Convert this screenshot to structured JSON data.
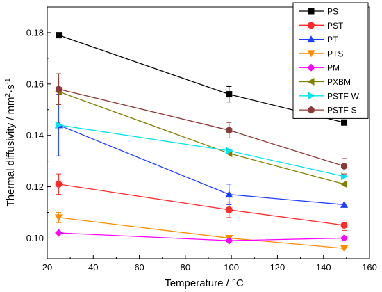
{
  "chart_data": {
    "type": "line",
    "xlabel": "Temperature / °C",
    "ylabel_main": "Thermal diffusivity / mm",
    "ylabel_sup1": "2",
    "ylabel_mid": "·s",
    "ylabel_sup2": "-1",
    "xlim": [
      20,
      160
    ],
    "ylim": [
      0.092,
      0.19
    ],
    "x_ticks": [
      20,
      40,
      60,
      80,
      100,
      120,
      140,
      160
    ],
    "x_tick_labels": [
      "20",
      "40",
      "60",
      "80",
      "100",
      "120",
      "140",
      "160"
    ],
    "y_ticks": [
      0.1,
      0.12,
      0.14,
      0.16,
      0.18
    ],
    "y_tick_labels": [
      "0.10",
      "0.12",
      "0.14",
      "0.16",
      "0.18"
    ],
    "legend_position": "top-right",
    "series": [
      {
        "name": "PS",
        "color": "#000000",
        "marker": "square",
        "x": [
          25,
          99,
          149
        ],
        "y": [
          0.179,
          0.156,
          0.145
        ],
        "err": [
          0,
          0.003,
          0
        ]
      },
      {
        "name": "PST",
        "color": "#ff2a2a",
        "marker": "circle",
        "x": [
          25,
          99,
          149
        ],
        "y": [
          0.121,
          0.111,
          0.105
        ],
        "err": [
          0.004,
          0.003,
          0.002
        ]
      },
      {
        "name": "PT",
        "color": "#1f3fff",
        "marker": "triangle-up",
        "x": [
          25,
          99,
          149
        ],
        "y": [
          0.144,
          0.117,
          0.113
        ],
        "err": [
          0.012,
          0.004,
          0
        ]
      },
      {
        "name": "PTS",
        "color": "#ff8c00",
        "marker": "triangle-down",
        "x": [
          25,
          99,
          149
        ],
        "y": [
          0.108,
          0.1,
          0.096
        ],
        "err": [
          0.002,
          0,
          0
        ]
      },
      {
        "name": "PM",
        "color": "#ff00ff",
        "marker": "diamond",
        "x": [
          25,
          99,
          149
        ],
        "y": [
          0.102,
          0.099,
          0.1
        ],
        "err": [
          0,
          0,
          0
        ]
      },
      {
        "name": "PXBM",
        "color": "#808000",
        "marker": "triangle-left",
        "x": [
          25,
          99,
          149
        ],
        "y": [
          0.157,
          0.133,
          0.121
        ],
        "err": [
          0.005,
          0,
          0
        ]
      },
      {
        "name": "PSTF-W",
        "color": "#00e5ee",
        "marker": "triangle-right",
        "x": [
          25,
          99,
          149
        ],
        "y": [
          0.144,
          0.134,
          0.124
        ],
        "err": [
          0,
          0,
          0
        ]
      },
      {
        "name": "PSTF-S",
        "color": "#8b3a3a",
        "marker": "hexagon",
        "x": [
          25,
          99,
          149
        ],
        "y": [
          0.158,
          0.142,
          0.128
        ],
        "err": [
          0.006,
          0.003,
          0.003
        ]
      }
    ]
  }
}
